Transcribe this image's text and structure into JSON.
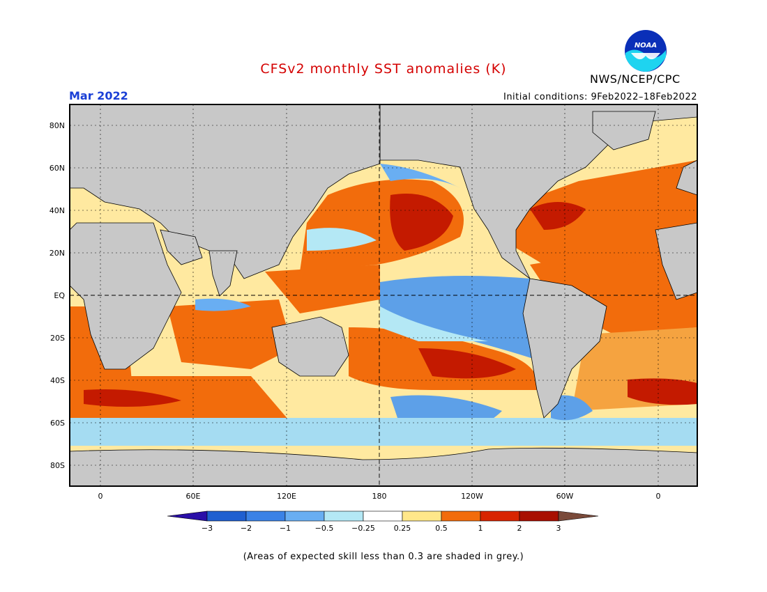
{
  "header": {
    "title": "CFSv2 monthly SST anomalies (K)",
    "month": "Mar 2022",
    "initial_conditions": "Initial conditions: 9Feb2022–18Feb2022",
    "agency": "NWS/NCEP/CPC",
    "logo_text": "NOAA"
  },
  "map": {
    "lat_labels": [
      "80N",
      "60N",
      "40N",
      "20N",
      "EQ",
      "20S",
      "40S",
      "60S",
      "80S"
    ],
    "lon_labels": [
      "0",
      "60E",
      "120E",
      "180",
      "120W",
      "60W",
      "0"
    ],
    "land_color": "#c8c8c8",
    "regions": [
      {
        "name": "north-pacific-warm-blob",
        "color": "#e52b00"
      },
      {
        "name": "north-pacific-core",
        "color": "#b40e00"
      },
      {
        "name": "equatorial-pacific-cool",
        "color": "#5da0e8"
      },
      {
        "name": "south-pacific-warm-band",
        "color": "#f26c0c"
      },
      {
        "name": "north-atlantic-warm",
        "color": "#f26c0c"
      },
      {
        "name": "southern-ocean-cool",
        "color": "#a5dcf2"
      }
    ]
  },
  "colorbar": {
    "labels": [
      "−3",
      "−2",
      "−1",
      "−0.5",
      "−0.25",
      "0.25",
      "0.5",
      "1",
      "2",
      "3"
    ],
    "colors": [
      "#2a0fa8",
      "#1f5fd0",
      "#3b82e6",
      "#69aef2",
      "#b4e8f5",
      "#ffffff",
      "#ffe78a",
      "#f5a340",
      "#f26c0c",
      "#d82400",
      "#a80f00",
      "#7a4a3a"
    ]
  },
  "footer": {
    "note": "(Areas of expected skill less than 0.3 are shaded in grey.)"
  }
}
